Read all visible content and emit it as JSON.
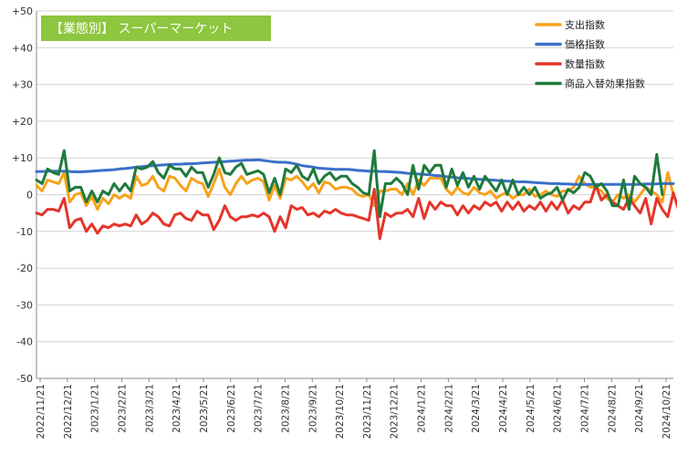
{
  "chart_data": {
    "type": "line",
    "title": "【業態別】 スーパーマーケット",
    "xlabel": "",
    "ylabel": "",
    "ylim": [
      -50,
      50
    ],
    "yticks": [
      "+50",
      "+40",
      "+30",
      "+20",
      "+10",
      "0",
      "-10",
      "-20",
      "-30",
      "-40",
      "-50"
    ],
    "grid": true,
    "legend_position": "top-right",
    "x_tick_labels": [
      "2022/11/21",
      "2022/12/21",
      "2023/1/21",
      "2023/2/21",
      "2023/3/21",
      "2023/4/21",
      "2023/5/21",
      "2023/6/21",
      "2023/7/21",
      "2023/8/21",
      "2023/9/21",
      "2023/10/21",
      "2023/11/21",
      "2023/12/21",
      "2024/1/21",
      "2024/2/21",
      "2024/3/21",
      "2024/4/21",
      "2024/5/21",
      "2024/6/21",
      "2024/7/21",
      "2024/8/21",
      "2024/9/21",
      "2024/10/21"
    ],
    "series": [
      {
        "name": "支出指数",
        "color": "#f7a21b",
        "values": [
          2.5,
          1,
          4,
          3.5,
          3,
          6,
          -2,
          0,
          0.5,
          -3,
          -0.5,
          -4,
          -1,
          -2.5,
          0,
          -1,
          0,
          -1,
          5,
          2.5,
          3,
          5,
          2,
          1,
          5,
          4.5,
          2.5,
          1,
          4.5,
          3.5,
          3,
          -0.5,
          3,
          7,
          2,
          0,
          3,
          5,
          3,
          4,
          4.5,
          3.5,
          -1.5,
          2.5,
          -1,
          4.5,
          4,
          5,
          3.5,
          1.5,
          3,
          0.5,
          3.5,
          3,
          1.5,
          2,
          2,
          1.5,
          0,
          -0.5,
          0,
          -3,
          1,
          1,
          1.5,
          1.5,
          0,
          3,
          0,
          4,
          2.5,
          4.5,
          4.5,
          4.5,
          1.5,
          0,
          2,
          0.5,
          0,
          2,
          0.5,
          0,
          1,
          -1,
          0,
          0.5,
          -1,
          0,
          0,
          1.5,
          -0.5,
          0,
          1,
          0,
          -0.5,
          1,
          1,
          2,
          5,
          3,
          2,
          2,
          1,
          -1,
          -2,
          0,
          -1,
          0,
          -2,
          0,
          2,
          1,
          0,
          -2,
          6,
          0
        ]
      },
      {
        "name": "価格指数",
        "color": "#3a6fc9",
        "values": [
          6.3,
          6.3,
          6.4,
          6.4,
          6.4,
          6.4,
          6.3,
          6.2,
          6.2,
          6.3,
          6.4,
          6.5,
          6.6,
          6.7,
          6.8,
          7,
          7.1,
          7.3,
          7.5,
          7.6,
          7.8,
          7.9,
          8,
          8.1,
          8.2,
          8.3,
          8.3,
          8.4,
          8.4,
          8.5,
          8.6,
          8.7,
          8.8,
          8.9,
          9,
          9.1,
          9.2,
          9.3,
          9.4,
          9.4,
          9.5,
          9.3,
          9.1,
          8.9,
          8.8,
          8.8,
          8.6,
          8.3,
          7.9,
          7.7,
          7.5,
          7.2,
          7.1,
          7,
          6.9,
          6.9,
          6.9,
          6.8,
          6.6,
          6.5,
          6.4,
          6.4,
          6.3,
          6.3,
          6.2,
          6.1,
          6,
          5.8,
          5.7,
          5.6,
          5.5,
          5.4,
          5.2,
          5.1,
          4.9,
          4.8,
          4.6,
          4.5,
          4.4,
          4.3,
          4.2,
          4.1,
          4,
          3.9,
          3.8,
          3.7,
          3.6,
          3.5,
          3.5,
          3.4,
          3.3,
          3.2,
          3.1,
          3,
          3,
          2.9,
          2.9,
          2.8,
          2.8,
          2.8,
          2.8,
          2.8,
          2.8,
          2.8,
          2.8,
          2.8,
          2.8,
          2.8,
          2.8,
          2.8,
          2.9,
          2.9,
          2.9,
          3,
          3,
          3
        ]
      },
      {
        "name": "数量指数",
        "color": "#e3362b",
        "values": [
          -5,
          -5.5,
          -4,
          -4,
          -4.5,
          -1,
          -9,
          -7,
          -6.5,
          -10,
          -8,
          -10.5,
          -8.5,
          -9,
          -8,
          -8.5,
          -8,
          -8.5,
          -5.5,
          -8,
          -7,
          -5,
          -6,
          -8,
          -8.5,
          -5.5,
          -5,
          -6.5,
          -7,
          -4.5,
          -5.5,
          -5.5,
          -9.5,
          -7,
          -3,
          -6,
          -7,
          -6,
          -6,
          -5.5,
          -6,
          -5,
          -6,
          -10,
          -6,
          -9,
          -3,
          -4,
          -3.5,
          -5.5,
          -5,
          -6,
          -4.5,
          -5,
          -4,
          -5,
          -5.5,
          -5.5,
          -6,
          -6.5,
          -7,
          1.5,
          -12,
          -5,
          -6,
          -5,
          -5,
          -4,
          -6,
          -1,
          -6.5,
          -2,
          -4,
          -2,
          -3,
          -3,
          -5.5,
          -3,
          -5,
          -3,
          -4,
          -2,
          -3,
          -2,
          -4.5,
          -2,
          -4,
          -2,
          -4.5,
          -3,
          -4,
          -2,
          -4.5,
          -2,
          -4,
          -1.5,
          -5,
          -3,
          -4,
          -2,
          -2,
          2.5,
          -1.5,
          0,
          -2,
          -3,
          -4,
          -1,
          -3,
          -5,
          -1,
          -8,
          -1,
          -4,
          -6,
          0.5,
          -4.5
        ]
      },
      {
        "name": "商品入替効果指数",
        "color": "#1f7a3c",
        "values": [
          4,
          3,
          7,
          6,
          5.5,
          12,
          1,
          2,
          2,
          -2,
          1,
          -2,
          1,
          0,
          3,
          1,
          3,
          1,
          7.5,
          7,
          7.5,
          9,
          6,
          4.5,
          8,
          7,
          7,
          5,
          7.5,
          6,
          6,
          2,
          5.5,
          10,
          6,
          5.5,
          7.5,
          8.5,
          5.5,
          6,
          6.5,
          5.5,
          0.5,
          4.5,
          0,
          7,
          6,
          8,
          5,
          4,
          7,
          3,
          5,
          6,
          4,
          5,
          5,
          3,
          2,
          0.5,
          0,
          12,
          -6,
          3,
          3,
          4.5,
          3,
          0,
          8,
          1.5,
          8,
          6,
          8,
          8,
          2,
          7,
          2.5,
          6,
          2,
          5,
          1.5,
          5,
          3,
          1,
          4,
          0,
          4,
          0,
          2,
          0,
          2,
          -1,
          0,
          0.5,
          2,
          -1.5,
          1.5,
          0.5,
          2,
          6,
          5,
          2,
          3,
          1,
          -3,
          -3,
          4,
          -4,
          5,
          3,
          2,
          0,
          11,
          0
        ]
      }
    ]
  }
}
